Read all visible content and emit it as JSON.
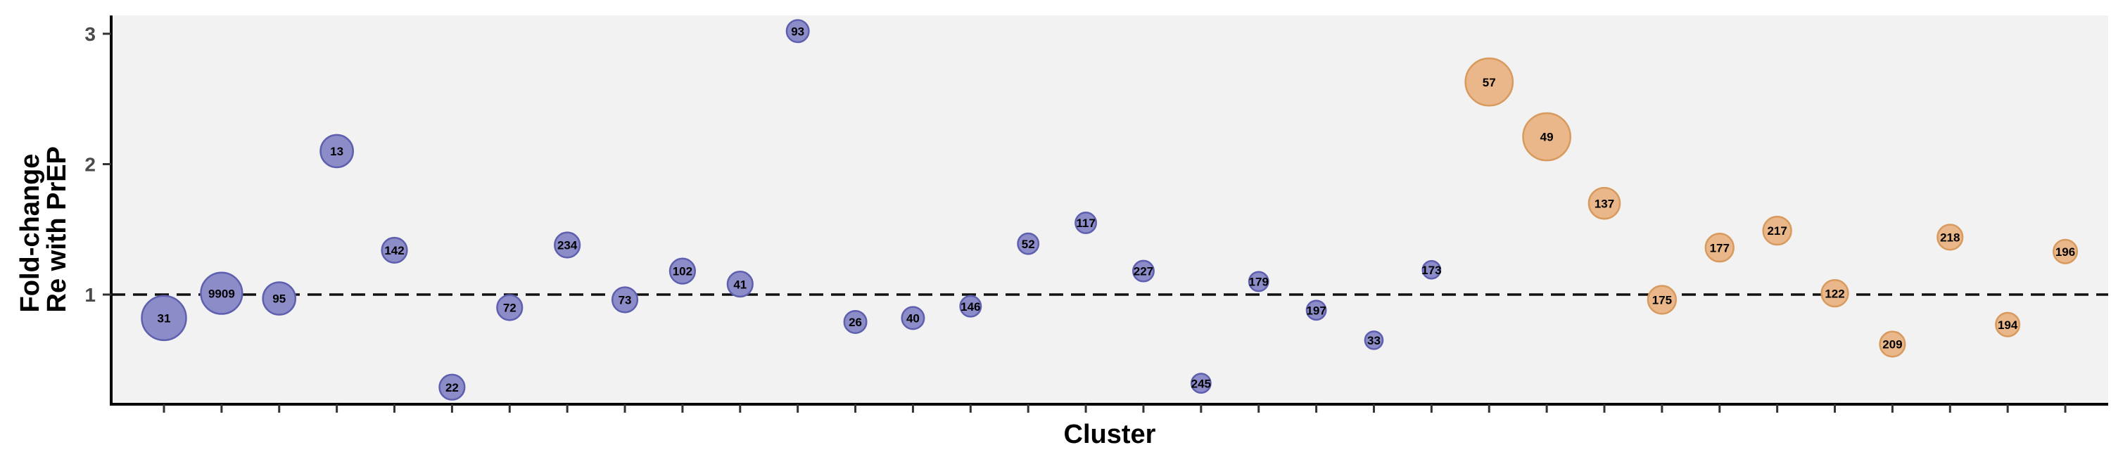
{
  "chart_data": {
    "type": "scatter",
    "title": "",
    "xlabel": "Cluster",
    "ylabel_lines": [
      "Fold-change",
      "Re with PrEP"
    ],
    "ylim": [
      0.15,
      3.15
    ],
    "y_ticks": [
      1,
      2,
      3
    ],
    "reference_line": 1,
    "grid": false,
    "colors": {
      "panel": "#f2f2f2",
      "blue_fill": "#8c8cc8",
      "blue_stroke": "#5f5fb0",
      "orange_fill": "#e9b789",
      "orange_stroke": "#d89a5e"
    },
    "points": [
      {
        "label": "31",
        "y": 0.82,
        "size": 3.0,
        "group": "blue"
      },
      {
        "label": "9909",
        "y": 1.01,
        "size": 2.8,
        "group": "blue"
      },
      {
        "label": "95",
        "y": 0.97,
        "size": 2.2,
        "group": "blue"
      },
      {
        "label": "13",
        "y": 2.1,
        "size": 2.2,
        "group": "blue"
      },
      {
        "label": "142",
        "y": 1.34,
        "size": 1.7,
        "group": "blue"
      },
      {
        "label": "22",
        "y": 0.29,
        "size": 1.7,
        "group": "blue"
      },
      {
        "label": "72",
        "y": 0.9,
        "size": 1.7,
        "group": "blue"
      },
      {
        "label": "234",
        "y": 1.38,
        "size": 1.7,
        "group": "blue"
      },
      {
        "label": "73",
        "y": 0.96,
        "size": 1.7,
        "group": "blue"
      },
      {
        "label": "102",
        "y": 1.18,
        "size": 1.7,
        "group": "blue"
      },
      {
        "label": "41",
        "y": 1.08,
        "size": 1.7,
        "group": "blue"
      },
      {
        "label": "93",
        "y": 3.02,
        "size": 1.5,
        "group": "blue"
      },
      {
        "label": "26",
        "y": 0.79,
        "size": 1.5,
        "group": "blue"
      },
      {
        "label": "40",
        "y": 0.82,
        "size": 1.5,
        "group": "blue"
      },
      {
        "label": "146",
        "y": 0.91,
        "size": 1.4,
        "group": "blue"
      },
      {
        "label": "52",
        "y": 1.39,
        "size": 1.4,
        "group": "blue"
      },
      {
        "label": "117",
        "y": 1.55,
        "size": 1.4,
        "group": "blue"
      },
      {
        "label": "227",
        "y": 1.18,
        "size": 1.4,
        "group": "blue"
      },
      {
        "label": "245",
        "y": 0.32,
        "size": 1.3,
        "group": "blue"
      },
      {
        "label": "179",
        "y": 1.1,
        "size": 1.3,
        "group": "blue"
      },
      {
        "label": "197",
        "y": 0.88,
        "size": 1.3,
        "group": "blue"
      },
      {
        "label": "33",
        "y": 0.65,
        "size": 1.2,
        "group": "blue"
      },
      {
        "label": "173",
        "y": 1.19,
        "size": 1.2,
        "group": "blue"
      },
      {
        "label": "57",
        "y": 2.63,
        "size": 3.2,
        "group": "orange"
      },
      {
        "label": "49",
        "y": 2.21,
        "size": 3.2,
        "group": "orange"
      },
      {
        "label": "137",
        "y": 1.7,
        "size": 2.1,
        "group": "orange"
      },
      {
        "label": "175",
        "y": 0.96,
        "size": 1.9,
        "group": "orange"
      },
      {
        "label": "177",
        "y": 1.36,
        "size": 1.9,
        "group": "orange"
      },
      {
        "label": "217",
        "y": 1.49,
        "size": 1.9,
        "group": "orange"
      },
      {
        "label": "122",
        "y": 1.01,
        "size": 1.8,
        "group": "orange"
      },
      {
        "label": "209",
        "y": 0.62,
        "size": 1.7,
        "group": "orange"
      },
      {
        "label": "218",
        "y": 1.44,
        "size": 1.7,
        "group": "orange"
      },
      {
        "label": "194",
        "y": 0.77,
        "size": 1.6,
        "group": "orange"
      },
      {
        "label": "196",
        "y": 1.33,
        "size": 1.6,
        "group": "orange"
      }
    ]
  }
}
